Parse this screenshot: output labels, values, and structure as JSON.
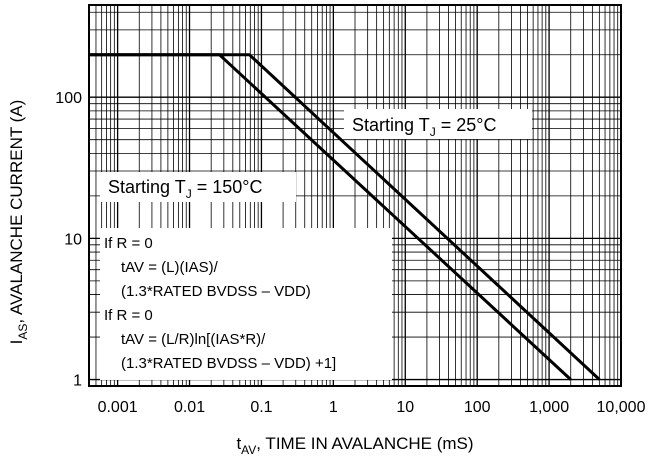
{
  "chart_data": {
    "type": "line",
    "x_axis": {
      "label_main": "t",
      "label_sub": "AV",
      "label_rest": ", TIME IN AVALANCHE (mS)",
      "scale": "log",
      "range": [
        0.0004,
        10000
      ],
      "ticks": [
        {
          "value": 0.001,
          "label": "0.001"
        },
        {
          "value": 0.01,
          "label": "0.01"
        },
        {
          "value": 0.1,
          "label": "0.1"
        },
        {
          "value": 1,
          "label": "1"
        },
        {
          "value": 10,
          "label": "10"
        },
        {
          "value": 100,
          "label": "100"
        },
        {
          "value": 1000,
          "label": "1,000"
        },
        {
          "value": 10000,
          "label": "10,000"
        }
      ]
    },
    "y_axis": {
      "label_main": "I",
      "label_sub": "AS",
      "label_rest": ", AVALANCHE CURRENT (A)",
      "scale": "log",
      "range": [
        0.9,
        450
      ],
      "ticks": [
        {
          "value": 1,
          "label": "1"
        },
        {
          "value": 10,
          "label": "10"
        },
        {
          "value": 100,
          "label": "100"
        }
      ]
    },
    "grid": true,
    "series": [
      {
        "x": [
          0.0004,
          0.026,
          2000
        ],
        "y": [
          200,
          200,
          1
        ]
      },
      {
        "x": [
          0.0004,
          0.068,
          5000
        ],
        "y": [
          200,
          200,
          1
        ]
      }
    ],
    "annotations": {
      "starting_25": {
        "prefix": "Starting T",
        "sub": "J",
        "suffix": " = 25°C"
      },
      "starting_150": {
        "prefix": "Starting T",
        "sub": "J",
        "suffix": " = 150°C"
      },
      "formula_lines": [
        "If R = 0",
        "tAV = (L)(IAS)/",
        "(1.3*RATED BVDSS – VDD)",
        "If R = 0",
        "tAV = (L/R)ln[(IAS*R)/",
        "(1.3*RATED BVDSS – VDD) +1]"
      ]
    }
  }
}
